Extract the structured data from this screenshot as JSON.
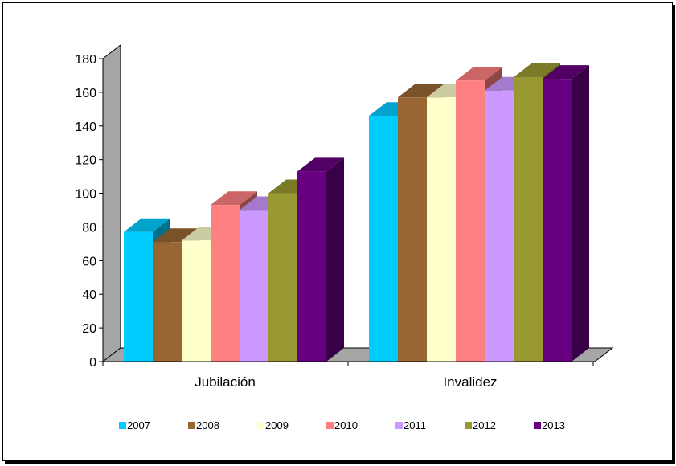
{
  "chart_data": {
    "type": "bar",
    "categories": [
      "Jubilación",
      "Invalidez"
    ],
    "series": [
      {
        "name": "2007",
        "values": [
          77,
          146
        ],
        "color": "#00ccff"
      },
      {
        "name": "2008",
        "values": [
          71,
          157
        ],
        "color": "#996633"
      },
      {
        "name": "2009",
        "values": [
          72,
          157
        ],
        "color": "#ffffcc"
      },
      {
        "name": "2010",
        "values": [
          93,
          167
        ],
        "color": "#ff8080"
      },
      {
        "name": "2011",
        "values": [
          90,
          161
        ],
        "color": "#cc99ff"
      },
      {
        "name": "2012",
        "values": [
          100,
          169
        ],
        "color": "#999933"
      },
      {
        "name": "2013",
        "values": [
          113,
          168
        ],
        "color": "#660080"
      }
    ],
    "y_ticks": [
      "0",
      "20",
      "40",
      "60",
      "80",
      "100",
      "120",
      "140",
      "160",
      "180"
    ],
    "ylim": [
      0,
      180
    ],
    "title": "",
    "xlabel": "",
    "ylabel": "",
    "legend_position": "bottom",
    "style": "3d-clustered-column",
    "grid": false,
    "wall_color": "#a6a6a6"
  }
}
